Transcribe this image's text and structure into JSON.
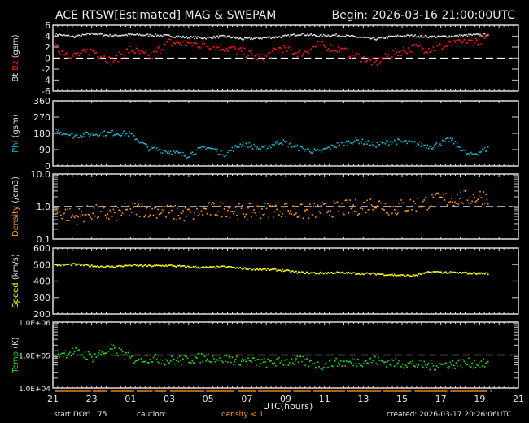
{
  "header": {
    "title": "ACE RTSW[Estimated] MAG & SWEPAM",
    "begin": "Begin: 2026-03-16 21:00:00UTC"
  },
  "footer": {
    "start_doy_label": "start DOY:",
    "start_doy_value": "75",
    "caution_label": "caution:",
    "caution_value": "density < 1",
    "created": "created: 2026-03-17 20:26:06UTC",
    "xlabel": "UTC(hours)"
  },
  "colors": {
    "bt": "#e0e0e0",
    "bz": "#ff1a1a",
    "phi": "#19b8d6",
    "density": "#ff9a1a",
    "speed": "#ffff1a",
    "temp": "#22dd22",
    "axis": "#ffffff",
    "caution": "#ff9a1a"
  },
  "chart_data": [
    {
      "type": "scatter",
      "title": "Bt / Bz",
      "ylabel": "Bt Bz (gsm)",
      "ylabel_parts": [
        {
          "text": "Bt",
          "color": "#e0e0e0"
        },
        {
          "text": "Bz",
          "color": "#ff1a1a"
        },
        {
          "text": "(gsm)",
          "color": "#e0e0e0"
        }
      ],
      "yticks": [
        "6",
        "4",
        "2",
        "0",
        "-2",
        "-4",
        "-6"
      ],
      "ylim": [
        -6,
        6
      ],
      "refline": 0,
      "x": [
        0,
        1,
        2,
        3,
        4,
        5,
        6,
        7,
        8,
        9,
        10,
        11,
        12,
        13,
        14,
        15,
        16,
        17,
        18,
        19,
        20,
        21,
        22,
        23
      ],
      "series": [
        {
          "name": "Bt",
          "values": [
            4.5,
            4.0,
            4.6,
            4.2,
            4.4,
            4.3,
            4.2,
            3.9,
            3.8,
            4.1,
            3.6,
            3.8,
            4.0,
            4.5,
            4.2,
            4.3,
            4.0,
            3.6,
            4.1,
            4.2,
            4.0,
            4.1,
            4.3,
            4.4
          ]
        },
        {
          "name": "Bz",
          "values": [
            2.0,
            0.5,
            1.5,
            -0.5,
            1.8,
            0.2,
            3.0,
            2.8,
            2.5,
            2.0,
            1.2,
            0.0,
            2.0,
            1.0,
            2.5,
            1.8,
            0.5,
            -0.8,
            1.0,
            2.0,
            1.8,
            2.5,
            3.0,
            3.8
          ]
        }
      ]
    },
    {
      "type": "scatter",
      "title": "Phi",
      "ylabel": "Phi (gsm)",
      "yticks": [
        "360",
        "270",
        "180",
        "90",
        "0"
      ],
      "ylim": [
        0,
        360
      ],
      "x": [
        0,
        1,
        2,
        3,
        4,
        5,
        6,
        7,
        8,
        9,
        10,
        11,
        12,
        13,
        14,
        15,
        16,
        17,
        18,
        19,
        20,
        21,
        22,
        23
      ],
      "series": [
        {
          "name": "Phi",
          "values": [
            200,
            170,
            180,
            185,
            180,
            100,
            85,
            60,
            110,
            70,
            130,
            95,
            140,
            100,
            80,
            120,
            145,
            120,
            140,
            130,
            110,
            150,
            60,
            100
          ]
        }
      ]
    },
    {
      "type": "scatter",
      "title": "Density",
      "ylabel": "Density (/cm3)",
      "yticks": [
        "10.0",
        "1.0",
        "0.1"
      ],
      "yscale": "log",
      "ylim": [
        0.1,
        10.0
      ],
      "refline": 1.0,
      "x": [
        0,
        1,
        2,
        3,
        4,
        5,
        6,
        7,
        8,
        9,
        10,
        11,
        12,
        13,
        14,
        15,
        16,
        17,
        18,
        19,
        20,
        21,
        22,
        23
      ],
      "series": [
        {
          "name": "Density",
          "values": [
            0.8,
            0.5,
            0.7,
            0.6,
            0.8,
            0.9,
            0.7,
            0.6,
            0.8,
            0.9,
            0.7,
            0.8,
            0.9,
            0.7,
            0.8,
            0.9,
            1.0,
            1.3,
            0.9,
            1.2,
            1.5,
            1.8,
            2.0,
            2.2
          ]
        }
      ]
    },
    {
      "type": "scatter",
      "title": "Speed",
      "ylabel": "Speed (km/s)",
      "yticks": [
        "600",
        "500",
        "400",
        "300",
        "200"
      ],
      "ylim": [
        200,
        600
      ],
      "x": [
        0,
        1,
        2,
        3,
        4,
        5,
        6,
        7,
        8,
        9,
        10,
        11,
        12,
        13,
        14,
        15,
        16,
        17,
        18,
        19,
        20,
        21,
        22,
        23
      ],
      "series": [
        {
          "name": "Speed",
          "values": [
            500,
            505,
            495,
            490,
            500,
            495,
            498,
            490,
            485,
            490,
            480,
            475,
            470,
            455,
            452,
            455,
            450,
            448,
            440,
            435,
            460,
            455,
            452,
            450
          ]
        }
      ]
    },
    {
      "type": "scatter",
      "title": "Temp",
      "ylabel": "Temp (K)",
      "yticks": [
        "1.0E+06",
        "1.0E+05",
        "1.0E+04"
      ],
      "yscale": "log",
      "ylim": [
        10000,
        1000000
      ],
      "refline": 100000,
      "x": [
        0,
        1,
        2,
        3,
        4,
        5,
        6,
        7,
        8,
        9,
        10,
        11,
        12,
        13,
        14,
        15,
        16,
        17,
        18,
        19,
        20,
        21,
        22,
        23
      ],
      "series": [
        {
          "name": "Temp",
          "values": [
            110000,
            130000,
            90000,
            160000,
            80000,
            85000,
            70000,
            75000,
            90000,
            80000,
            70000,
            60000,
            65000,
            70000,
            50000,
            60000,
            65000,
            70000,
            60000,
            55000,
            50000,
            55000,
            60000,
            55000
          ]
        }
      ]
    }
  ],
  "xaxis": {
    "ticks": [
      "21",
      "23",
      "01",
      "03",
      "05",
      "07",
      "09",
      "11",
      "13",
      "15",
      "17",
      "19",
      "21"
    ],
    "label": "UTC(hours)",
    "range_hours": 24
  }
}
